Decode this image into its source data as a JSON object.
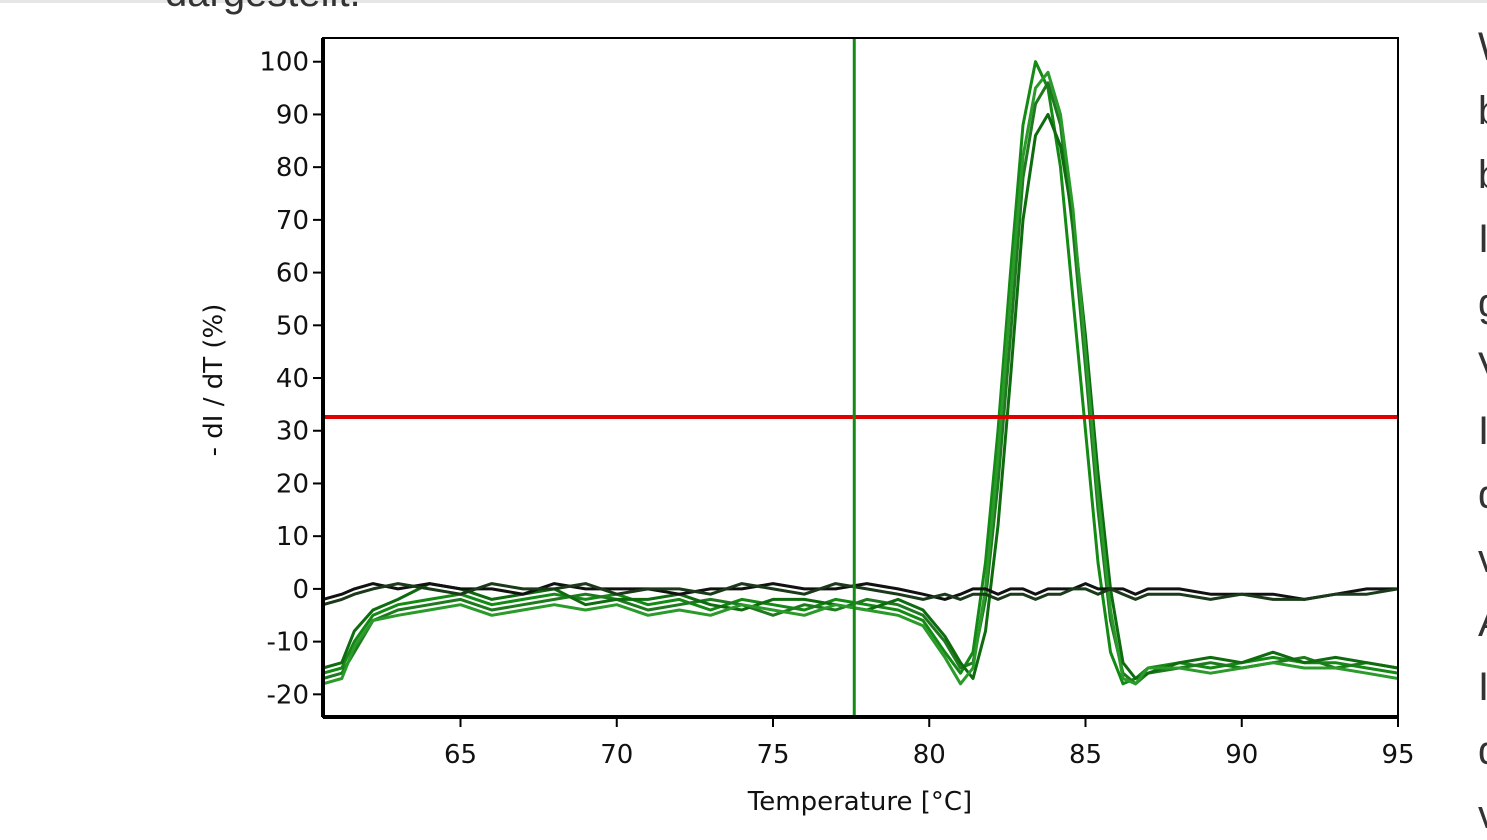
{
  "page_text": {
    "top_fragment": "dargestellt.",
    "right_fragments": [
      "W",
      "b",
      "b",
      "I",
      "g",
      "V",
      "I",
      "d",
      "v",
      "A",
      "I",
      "d",
      "v"
    ]
  },
  "chart_data": {
    "type": "line",
    "xlabel": "Temperature [°C]",
    "ylabel": "- dI / dT (%)",
    "x": [
      60.6,
      61.2,
      61.6,
      62.2,
      63,
      64,
      65,
      66,
      67,
      68,
      69,
      70,
      71,
      72,
      73,
      74,
      75,
      76,
      77,
      78,
      79,
      79.8,
      80.5,
      81,
      81.4,
      81.8,
      82.2,
      82.6,
      83,
      83.4,
      83.8,
      84.2,
      84.6,
      85,
      85.4,
      85.8,
      86.2,
      86.6,
      87,
      88,
      89,
      90,
      91,
      92,
      93,
      94,
      95
    ],
    "series": [
      {
        "color": "#138a13",
        "values": [
          -16,
          -15,
          -10,
          -5,
          -3,
          -2,
          -1,
          -3,
          -2,
          -1,
          -2,
          -1,
          -3,
          -2,
          -4,
          -2,
          -3,
          -4,
          -2,
          -3,
          -4,
          -6,
          -12,
          -16,
          -12,
          5,
          30,
          60,
          88,
          100,
          95,
          80,
          55,
          30,
          5,
          -12,
          -18,
          -17,
          -15,
          -14,
          -15,
          -14,
          -13,
          -14,
          -14,
          -15,
          -16
        ]
      },
      {
        "color": "#1f7a1f",
        "values": [
          -17,
          -16,
          -12,
          -6,
          -4,
          -3,
          -2,
          -4,
          -3,
          -2,
          -1,
          -2,
          -4,
          -3,
          -2,
          -3,
          -5,
          -3,
          -4,
          -2,
          -3,
          -5,
          -10,
          -15,
          -14,
          -2,
          20,
          48,
          78,
          92,
          96,
          88,
          68,
          42,
          15,
          -6,
          -16,
          -18,
          -16,
          -15,
          -14,
          -15,
          -14,
          -13,
          -15,
          -14,
          -15
        ]
      },
      {
        "color": "#0e6b0e",
        "values": [
          -15,
          -14,
          -8,
          -4,
          -2,
          1,
          0,
          -2,
          -1,
          0,
          -3,
          -2,
          -2,
          -1,
          -3,
          -4,
          -2,
          -2,
          -3,
          -4,
          -2,
          -4,
          -9,
          -14,
          -17,
          -8,
          12,
          40,
          70,
          86,
          90,
          84,
          70,
          48,
          22,
          0,
          -14,
          -17,
          -16,
          -14,
          -13,
          -14,
          -12,
          -14,
          -13,
          -14,
          -15
        ]
      },
      {
        "color": "#2a9a2a",
        "values": [
          -18,
          -17,
          -11,
          -6,
          -5,
          -4,
          -3,
          -5,
          -4,
          -3,
          -4,
          -3,
          -5,
          -4,
          -5,
          -3,
          -4,
          -5,
          -3,
          -4,
          -5,
          -7,
          -13,
          -18,
          -15,
          0,
          25,
          55,
          82,
          95,
          98,
          90,
          72,
          45,
          18,
          -4,
          -17,
          -18,
          -15,
          -15,
          -16,
          -15,
          -14,
          -15,
          -15,
          -16,
          -17
        ]
      },
      {
        "color": "#111111",
        "values": [
          -2,
          -1,
          0,
          1,
          0,
          1,
          0,
          0,
          -1,
          1,
          0,
          0,
          0,
          -1,
          0,
          0,
          1,
          0,
          0,
          1,
          0,
          -1,
          -2,
          -1,
          0,
          0,
          -1,
          0,
          0,
          -1,
          0,
          0,
          0,
          1,
          0,
          0,
          0,
          -1,
          0,
          0,
          -1,
          -1,
          -1,
          -2,
          -1,
          0,
          0
        ]
      },
      {
        "color": "#1a3a1a",
        "values": [
          -3,
          -2,
          -1,
          0,
          1,
          0,
          -1,
          1,
          0,
          0,
          1,
          -1,
          0,
          0,
          -1,
          1,
          0,
          -1,
          1,
          0,
          -1,
          -2,
          -1,
          -2,
          -1,
          -1,
          -2,
          -1,
          -1,
          -2,
          -1,
          -1,
          0,
          0,
          -1,
          0,
          -1,
          -2,
          -1,
          -1,
          -2,
          -1,
          -2,
          -2,
          -1,
          -1,
          0
        ]
      }
    ],
    "xlim": [
      60.6,
      95
    ],
    "ylim": [
      -24.3,
      104.5
    ],
    "xticks": [
      65,
      70,
      75,
      80,
      85,
      90,
      95
    ],
    "yticks": [
      -20,
      -10,
      0,
      10,
      20,
      30,
      40,
      50,
      60,
      70,
      80,
      90,
      100
    ],
    "hline": {
      "value": 32.6,
      "color": "#e00000"
    },
    "vline": {
      "value": 77.6,
      "color": "#138a13"
    }
  }
}
